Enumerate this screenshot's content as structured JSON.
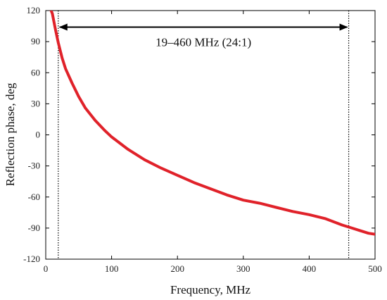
{
  "chart_data": {
    "type": "line",
    "xlabel": "Frequency, MHz",
    "ylabel": "Reflection phase, deg",
    "xlim": [
      0,
      500
    ],
    "ylim": [
      -120,
      120
    ],
    "xticks": [
      0,
      100,
      200,
      300,
      400,
      500
    ],
    "yticks": [
      120,
      90,
      60,
      30,
      0,
      -30,
      -60,
      -90,
      -120
    ],
    "grid": false,
    "series": [
      {
        "color": "#e0222a",
        "x": [
          5,
          10,
          15,
          19,
          25,
          30,
          40,
          50,
          60,
          75,
          90,
          100,
          125,
          150,
          175,
          200,
          225,
          250,
          275,
          300,
          325,
          350,
          375,
          400,
          425,
          450,
          460,
          475,
          490,
          500
        ],
        "y": [
          125,
          117,
          101,
          89,
          74,
          64,
          50,
          37,
          26,
          14,
          4,
          -2,
          -14,
          -24,
          -32,
          -39,
          -46,
          -52,
          -58,
          -63,
          -66,
          -70,
          -74,
          -77,
          -81,
          -87,
          -89,
          -92,
          -95,
          -96
        ]
      }
    ],
    "markers": [
      19,
      460
    ],
    "annotation": {
      "text": "19–460 MHz (24:1)",
      "x_start": 19,
      "x_end": 460,
      "y": 104
    }
  }
}
